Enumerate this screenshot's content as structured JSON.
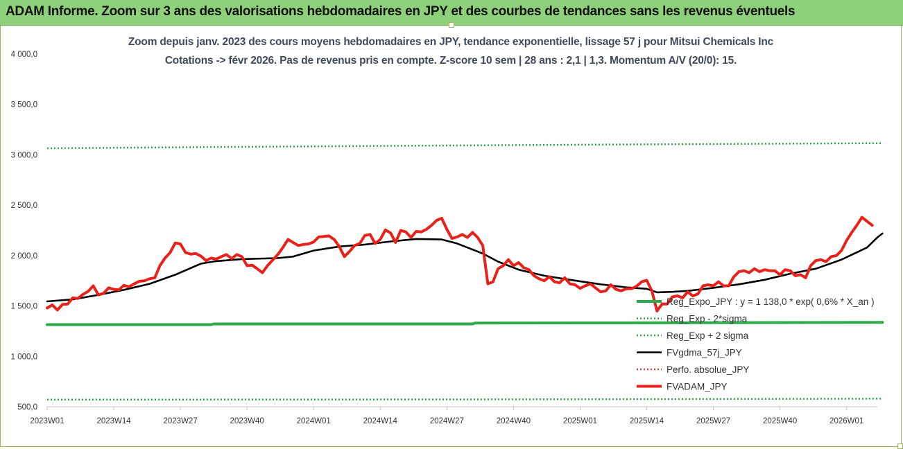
{
  "banner": {
    "title": "ADAM Informe. Zoom sur 3 ans des valorisations hebdomadaires en JPY et des courbes de tendances sans les revenus éventuels",
    "background": "#8fd17a"
  },
  "chart_data": {
    "type": "line",
    "title_line1": "Zoom depuis janv. 2023 des cours moyens hebdomadaires en JPY, tendance exponentielle, lissage 57 j pour Mitsui Chemicals Inc",
    "title_line2": "Cotations -> févr 2026. Pas de revenus pris en compte. Z-score 10 sem | 28 ans : 2,1 | 1,3. Momentum A/V (20/0): 15.",
    "xlabel": "",
    "ylabel": "",
    "ylim": [
      500,
      4000
    ],
    "y_ticks": [
      {
        "value": 500,
        "label": "500,0"
      },
      {
        "value": 1000,
        "label": "1 000,0"
      },
      {
        "value": 1500,
        "label": "1 500,0"
      },
      {
        "value": 2000,
        "label": "2 000,0"
      },
      {
        "value": 2500,
        "label": "2 500,0"
      },
      {
        "value": 3000,
        "label": "3 000,0"
      },
      {
        "value": 3500,
        "label": "3 500,0"
      },
      {
        "value": 4000,
        "label": "4 000,0"
      }
    ],
    "x_range": [
      0,
      162
    ],
    "x_ticks": [
      {
        "index": 0,
        "label": "2023W01"
      },
      {
        "index": 13,
        "label": "2023W14"
      },
      {
        "index": 26,
        "label": "2023W27"
      },
      {
        "index": 39,
        "label": "2023W40"
      },
      {
        "index": 52,
        "label": "2024W01"
      },
      {
        "index": 65,
        "label": "2024W14"
      },
      {
        "index": 78,
        "label": "2024W27"
      },
      {
        "index": 91,
        "label": "2024W40"
      },
      {
        "index": 104,
        "label": "2025W01"
      },
      {
        "index": 117,
        "label": "2025W14"
      },
      {
        "index": 130,
        "label": "2025W27"
      },
      {
        "index": 143,
        "label": "2025W40"
      },
      {
        "index": 156,
        "label": "2026W01"
      }
    ],
    "legend_position": "right-bottom",
    "series": [
      {
        "name": "Reg_Expo_JPY : y = 1 138,0 * exp( 0,6% * X_an )",
        "color": "#2eaa4a",
        "style": "solid-thick",
        "points": [
          [
            0,
            1315
          ],
          [
            32,
            1315
          ],
          [
            32.5,
            1322
          ],
          [
            83,
            1322
          ],
          [
            83.5,
            1330
          ],
          [
            163,
            1337
          ]
        ]
      },
      {
        "name": "Reg_Exp - 2*sigma",
        "color": "#2eaa4a",
        "style": "dotted",
        "points": [
          [
            0,
            570
          ],
          [
            81,
            572
          ],
          [
            163,
            580
          ]
        ]
      },
      {
        "name": "Reg_Exp + 2 sigma",
        "color": "#2eaa4a",
        "style": "dotted",
        "points": [
          [
            0,
            3065
          ],
          [
            40,
            3080
          ],
          [
            81,
            3093
          ],
          [
            120,
            3105
          ],
          [
            163,
            3115
          ]
        ]
      },
      {
        "name": "FVgdma_57j_JPY",
        "color": "#000000",
        "style": "solid",
        "points": [
          [
            0,
            1545
          ],
          [
            5,
            1565
          ],
          [
            10,
            1610
          ],
          [
            15,
            1660
          ],
          [
            20,
            1720
          ],
          [
            25,
            1810
          ],
          [
            30,
            1920
          ],
          [
            33,
            1945
          ],
          [
            38,
            1965
          ],
          [
            45,
            1975
          ],
          [
            48,
            1990
          ],
          [
            52,
            2050
          ],
          [
            57,
            2090
          ],
          [
            62,
            2110
          ],
          [
            67,
            2140
          ],
          [
            72,
            2165
          ],
          [
            77,
            2160
          ],
          [
            80,
            2120
          ],
          [
            85,
            2020
          ],
          [
            88,
            1940
          ],
          [
            92,
            1860
          ],
          [
            97,
            1800
          ],
          [
            102,
            1760
          ],
          [
            108,
            1715
          ],
          [
            113,
            1685
          ],
          [
            117,
            1670
          ],
          [
            119,
            1635
          ],
          [
            122,
            1640
          ],
          [
            125,
            1650
          ],
          [
            130,
            1680
          ],
          [
            135,
            1715
          ],
          [
            140,
            1760
          ],
          [
            145,
            1820
          ],
          [
            150,
            1870
          ],
          [
            155,
            1960
          ],
          [
            160,
            2080
          ],
          [
            162,
            2180
          ],
          [
            163,
            2220
          ]
        ]
      },
      {
        "name": "Perfo. absolue_JPY",
        "color": "#e0403a",
        "style": "dotted",
        "points": []
      },
      {
        "name": "FVADAM_JPY",
        "color": "#e8211a",
        "style": "solid-thick",
        "points": [
          [
            0,
            1480
          ],
          [
            1,
            1510
          ],
          [
            2,
            1460
          ],
          [
            3,
            1515
          ],
          [
            4,
            1520
          ],
          [
            5,
            1580
          ],
          [
            6,
            1575
          ],
          [
            7,
            1615
          ],
          [
            8,
            1645
          ],
          [
            9,
            1700
          ],
          [
            10,
            1610
          ],
          [
            11,
            1625
          ],
          [
            12,
            1680
          ],
          [
            13,
            1665
          ],
          [
            14,
            1660
          ],
          [
            15,
            1705
          ],
          [
            16,
            1690
          ],
          [
            17,
            1720
          ],
          [
            18,
            1745
          ],
          [
            19,
            1750
          ],
          [
            20,
            1770
          ],
          [
            21,
            1780
          ],
          [
            22,
            1900
          ],
          [
            23,
            1975
          ],
          [
            24,
            2030
          ],
          [
            25,
            2125
          ],
          [
            26,
            2115
          ],
          [
            27,
            2030
          ],
          [
            28,
            2015
          ],
          [
            29,
            2020
          ],
          [
            30,
            1995
          ],
          [
            31,
            1950
          ],
          [
            32,
            1975
          ],
          [
            33,
            1965
          ],
          [
            34,
            1990
          ],
          [
            35,
            2010
          ],
          [
            36,
            1970
          ],
          [
            37,
            2010
          ],
          [
            38,
            1990
          ],
          [
            39,
            1900
          ],
          [
            40,
            1905
          ],
          [
            41,
            1870
          ],
          [
            42,
            1830
          ],
          [
            43,
            1900
          ],
          [
            44,
            1955
          ],
          [
            45,
            2010
          ],
          [
            46,
            2080
          ],
          [
            47,
            2160
          ],
          [
            48,
            2130
          ],
          [
            49,
            2100
          ],
          [
            50,
            2110
          ],
          [
            51,
            2115
          ],
          [
            52,
            2135
          ],
          [
            53,
            2185
          ],
          [
            54,
            2190
          ],
          [
            55,
            2195
          ],
          [
            56,
            2160
          ],
          [
            57,
            2090
          ],
          [
            58,
            1990
          ],
          [
            59,
            2040
          ],
          [
            60,
            2100
          ],
          [
            61,
            2120
          ],
          [
            62,
            2200
          ],
          [
            63,
            2210
          ],
          [
            64,
            2120
          ],
          [
            65,
            2160
          ],
          [
            66,
            2255
          ],
          [
            67,
            2225
          ],
          [
            68,
            2130
          ],
          [
            69,
            2250
          ],
          [
            70,
            2235
          ],
          [
            71,
            2180
          ],
          [
            72,
            2240
          ],
          [
            73,
            2235
          ],
          [
            74,
            2260
          ],
          [
            75,
            2300
          ],
          [
            76,
            2350
          ],
          [
            77,
            2370
          ],
          [
            78,
            2260
          ],
          [
            79,
            2170
          ],
          [
            80,
            2185
          ],
          [
            81,
            2210
          ],
          [
            82,
            2180
          ],
          [
            83,
            2230
          ],
          [
            84,
            2180
          ],
          [
            85,
            2100
          ],
          [
            86,
            1720
          ],
          [
            87,
            1740
          ],
          [
            88,
            1870
          ],
          [
            89,
            1900
          ],
          [
            90,
            1960
          ],
          [
            91,
            1900
          ],
          [
            92,
            1930
          ],
          [
            93,
            1880
          ],
          [
            94,
            1860
          ],
          [
            95,
            1800
          ],
          [
            96,
            1770
          ],
          [
            97,
            1750
          ],
          [
            98,
            1790
          ],
          [
            99,
            1740
          ],
          [
            100,
            1730
          ],
          [
            101,
            1780
          ],
          [
            102,
            1720
          ],
          [
            103,
            1710
          ],
          [
            104,
            1675
          ],
          [
            105,
            1700
          ],
          [
            106,
            1720
          ],
          [
            107,
            1680
          ],
          [
            108,
            1640
          ],
          [
            109,
            1650
          ],
          [
            110,
            1710
          ],
          [
            111,
            1665
          ],
          [
            112,
            1650
          ],
          [
            113,
            1670
          ],
          [
            114,
            1670
          ],
          [
            115,
            1695
          ],
          [
            116,
            1740
          ],
          [
            117,
            1755
          ],
          [
            118,
            1650
          ],
          [
            119,
            1450
          ],
          [
            120,
            1520
          ],
          [
            121,
            1520
          ],
          [
            122,
            1590
          ],
          [
            123,
            1600
          ],
          [
            124,
            1580
          ],
          [
            125,
            1640
          ],
          [
            126,
            1600
          ],
          [
            127,
            1620
          ],
          [
            128,
            1700
          ],
          [
            129,
            1710
          ],
          [
            130,
            1700
          ],
          [
            131,
            1740
          ],
          [
            132,
            1700
          ],
          [
            133,
            1700
          ],
          [
            134,
            1790
          ],
          [
            135,
            1840
          ],
          [
            136,
            1850
          ],
          [
            137,
            1830
          ],
          [
            138,
            1870
          ],
          [
            139,
            1840
          ],
          [
            140,
            1860
          ],
          [
            141,
            1850
          ],
          [
            142,
            1850
          ],
          [
            143,
            1810
          ],
          [
            144,
            1860
          ],
          [
            145,
            1850
          ],
          [
            146,
            1800
          ],
          [
            147,
            1810
          ],
          [
            148,
            1780
          ],
          [
            149,
            1900
          ],
          [
            150,
            1950
          ],
          [
            151,
            1960
          ],
          [
            152,
            1940
          ],
          [
            153,
            1990
          ],
          [
            154,
            2000
          ],
          [
            155,
            2050
          ],
          [
            156,
            2150
          ],
          [
            157,
            2230
          ],
          [
            158,
            2300
          ],
          [
            159,
            2380
          ],
          [
            160,
            2340
          ],
          [
            161,
            2300
          ]
        ]
      }
    ]
  }
}
